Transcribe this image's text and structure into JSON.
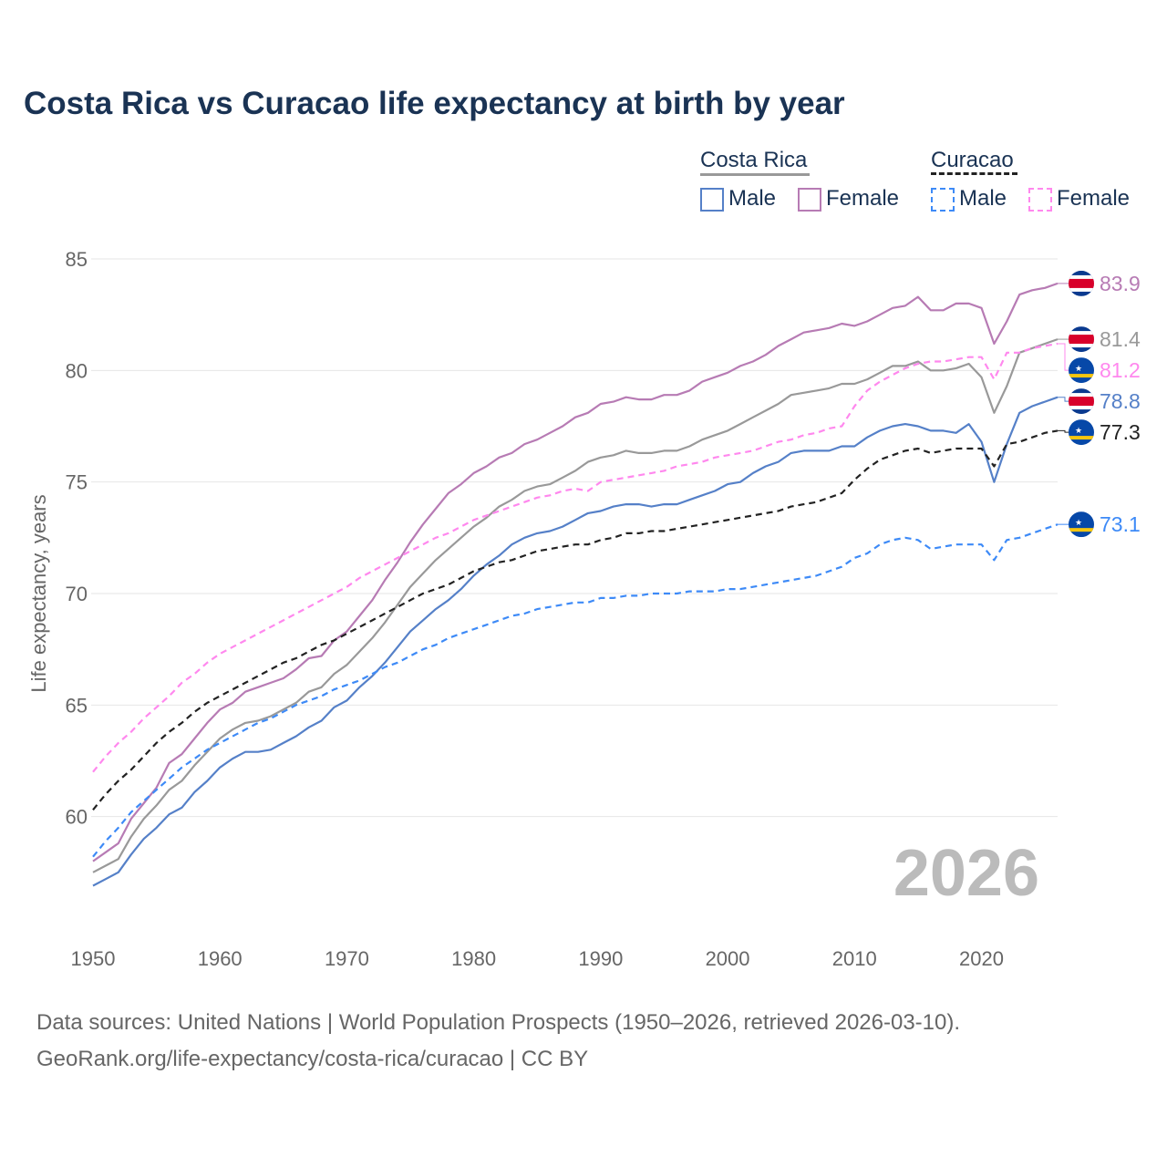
{
  "chart_data": {
    "type": "line",
    "title": "Costa Rica vs Curacao life expectancy at birth by year",
    "ylabel": "Life expectancy, years",
    "xlabel": "",
    "ylim": [
      55,
      85
    ],
    "xlim": [
      1950,
      2026
    ],
    "yticks": [
      60,
      65,
      70,
      75,
      80,
      85
    ],
    "xticks": [
      1950,
      1960,
      1970,
      1980,
      1990,
      2000,
      2010,
      2020
    ],
    "grid": true,
    "watermark_year": "2026",
    "x_start": 1950,
    "legend": {
      "group1": "Costa Rica",
      "group2": "Curacao",
      "male": "Male",
      "female": "Female"
    },
    "series": [
      {
        "name": "Costa Rica Female",
        "country": "Costa Rica",
        "color": "#b77bb4",
        "dash": false,
        "flag": "cr",
        "end_label": "83.9",
        "values": [
          58.0,
          58.4,
          58.8,
          59.9,
          60.6,
          61.3,
          62.4,
          62.8,
          63.5,
          64.2,
          64.8,
          65.1,
          65.6,
          65.8,
          66.0,
          66.2,
          66.6,
          67.1,
          67.2,
          67.9,
          68.3,
          69.0,
          69.7,
          70.6,
          71.4,
          72.3,
          73.1,
          73.8,
          74.5,
          74.9,
          75.4,
          75.7,
          76.1,
          76.3,
          76.7,
          76.9,
          77.2,
          77.5,
          77.9,
          78.1,
          78.5,
          78.6,
          78.8,
          78.7,
          78.7,
          78.9,
          78.9,
          79.1,
          79.5,
          79.7,
          79.9,
          80.2,
          80.4,
          80.7,
          81.1,
          81.4,
          81.7,
          81.8,
          81.9,
          82.1,
          82.0,
          82.2,
          82.5,
          82.8,
          82.9,
          83.3,
          82.7,
          82.7,
          83.0,
          83.0,
          82.8,
          81.2,
          82.2,
          83.4,
          83.6,
          83.7,
          83.9
        ]
      },
      {
        "name": "Costa Rica",
        "country": "Costa Rica",
        "color": "#999999",
        "dash": false,
        "flag": "cr",
        "end_label": "81.4",
        "values": [
          57.5,
          57.8,
          58.1,
          59.1,
          59.9,
          60.5,
          61.2,
          61.6,
          62.3,
          62.9,
          63.5,
          63.9,
          64.2,
          64.3,
          64.5,
          64.8,
          65.1,
          65.6,
          65.8,
          66.4,
          66.8,
          67.4,
          68.0,
          68.7,
          69.5,
          70.3,
          70.9,
          71.5,
          72.0,
          72.5,
          73.0,
          73.4,
          73.9,
          74.2,
          74.6,
          74.8,
          74.9,
          75.2,
          75.5,
          75.9,
          76.1,
          76.2,
          76.4,
          76.3,
          76.3,
          76.4,
          76.4,
          76.6,
          76.9,
          77.1,
          77.3,
          77.6,
          77.9,
          78.2,
          78.5,
          78.9,
          79.0,
          79.1,
          79.2,
          79.4,
          79.4,
          79.6,
          79.9,
          80.2,
          80.2,
          80.4,
          80.0,
          80.0,
          80.1,
          80.3,
          79.7,
          78.1,
          79.3,
          80.8,
          81.0,
          81.2,
          81.4
        ]
      },
      {
        "name": "Curacao Female",
        "country": "Curacao",
        "color": "#ff88ee",
        "dash": true,
        "flag": "cw",
        "end_label": "81.2",
        "values": [
          62.0,
          62.7,
          63.3,
          63.8,
          64.4,
          64.9,
          65.4,
          66.0,
          66.4,
          66.9,
          67.3,
          67.6,
          67.9,
          68.2,
          68.5,
          68.8,
          69.1,
          69.4,
          69.7,
          70.0,
          70.3,
          70.7,
          71.0,
          71.3,
          71.6,
          71.9,
          72.2,
          72.5,
          72.7,
          73.0,
          73.3,
          73.5,
          73.7,
          73.9,
          74.1,
          74.3,
          74.4,
          74.6,
          74.7,
          74.6,
          75.0,
          75.1,
          75.2,
          75.3,
          75.4,
          75.5,
          75.7,
          75.8,
          75.9,
          76.1,
          76.2,
          76.3,
          76.4,
          76.6,
          76.8,
          76.9,
          77.1,
          77.2,
          77.4,
          77.5,
          78.4,
          79.1,
          79.5,
          79.8,
          80.1,
          80.3,
          80.4,
          80.4,
          80.5,
          80.6,
          80.6,
          79.6,
          80.8,
          80.8,
          81.0,
          81.1,
          81.2
        ]
      },
      {
        "name": "Costa Rica Male",
        "country": "Costa Rica",
        "color": "#5580c8",
        "dash": false,
        "flag": "cr",
        "end_label": "78.8",
        "values": [
          56.9,
          57.2,
          57.5,
          58.3,
          59.0,
          59.5,
          60.1,
          60.4,
          61.1,
          61.6,
          62.2,
          62.6,
          62.9,
          62.9,
          63.0,
          63.3,
          63.6,
          64.0,
          64.3,
          64.9,
          65.2,
          65.8,
          66.3,
          66.9,
          67.6,
          68.3,
          68.8,
          69.3,
          69.7,
          70.2,
          70.8,
          71.3,
          71.7,
          72.2,
          72.5,
          72.7,
          72.8,
          73.0,
          73.3,
          73.6,
          73.7,
          73.9,
          74.0,
          74.0,
          73.9,
          74.0,
          74.0,
          74.2,
          74.4,
          74.6,
          74.9,
          75.0,
          75.4,
          75.7,
          75.9,
          76.3,
          76.4,
          76.4,
          76.4,
          76.6,
          76.6,
          77.0,
          77.3,
          77.5,
          77.6,
          77.5,
          77.3,
          77.3,
          77.2,
          77.6,
          76.8,
          75.0,
          76.7,
          78.1,
          78.4,
          78.6,
          78.8
        ]
      },
      {
        "name": "Curacao",
        "country": "Curacao",
        "color": "#222222",
        "dash": true,
        "flag": "cw",
        "end_label": "77.3",
        "values": [
          60.3,
          61.0,
          61.6,
          62.1,
          62.7,
          63.3,
          63.8,
          64.2,
          64.7,
          65.1,
          65.4,
          65.7,
          66.0,
          66.3,
          66.6,
          66.9,
          67.1,
          67.4,
          67.7,
          67.9,
          68.2,
          68.5,
          68.8,
          69.1,
          69.4,
          69.7,
          70.0,
          70.2,
          70.4,
          70.7,
          71.0,
          71.2,
          71.4,
          71.5,
          71.7,
          71.9,
          72.0,
          72.1,
          72.2,
          72.2,
          72.4,
          72.5,
          72.7,
          72.7,
          72.8,
          72.8,
          72.9,
          73.0,
          73.1,
          73.2,
          73.3,
          73.4,
          73.5,
          73.6,
          73.7,
          73.9,
          74.0,
          74.1,
          74.3,
          74.5,
          75.1,
          75.6,
          76.0,
          76.2,
          76.4,
          76.5,
          76.3,
          76.4,
          76.5,
          76.5,
          76.5,
          75.7,
          76.7,
          76.8,
          77.0,
          77.2,
          77.3
        ]
      },
      {
        "name": "Curacao Male",
        "country": "Curacao",
        "color": "#3d8af7",
        "dash": true,
        "flag": "cw",
        "end_label": "73.1",
        "values": [
          58.2,
          58.9,
          59.5,
          60.2,
          60.7,
          61.2,
          61.7,
          62.2,
          62.6,
          63.0,
          63.3,
          63.6,
          63.9,
          64.2,
          64.4,
          64.7,
          65.0,
          65.2,
          65.4,
          65.7,
          65.9,
          66.1,
          66.4,
          66.7,
          66.9,
          67.2,
          67.5,
          67.7,
          68.0,
          68.2,
          68.4,
          68.6,
          68.8,
          69.0,
          69.1,
          69.3,
          69.4,
          69.5,
          69.6,
          69.6,
          69.8,
          69.8,
          69.9,
          69.9,
          70.0,
          70.0,
          70.0,
          70.1,
          70.1,
          70.1,
          70.2,
          70.2,
          70.3,
          70.4,
          70.5,
          70.6,
          70.7,
          70.8,
          71.0,
          71.2,
          71.6,
          71.8,
          72.2,
          72.4,
          72.5,
          72.4,
          72.0,
          72.1,
          72.2,
          72.2,
          72.2,
          71.5,
          72.4,
          72.5,
          72.7,
          72.9,
          73.1
        ]
      }
    ]
  },
  "footer": {
    "line1": "Data sources: United Nations | World Population Prospects (1950–2026, retrieved 2026-03-10).",
    "line2": "GeoRank.org/life-expectancy/costa-rica/curacao | CC BY"
  }
}
